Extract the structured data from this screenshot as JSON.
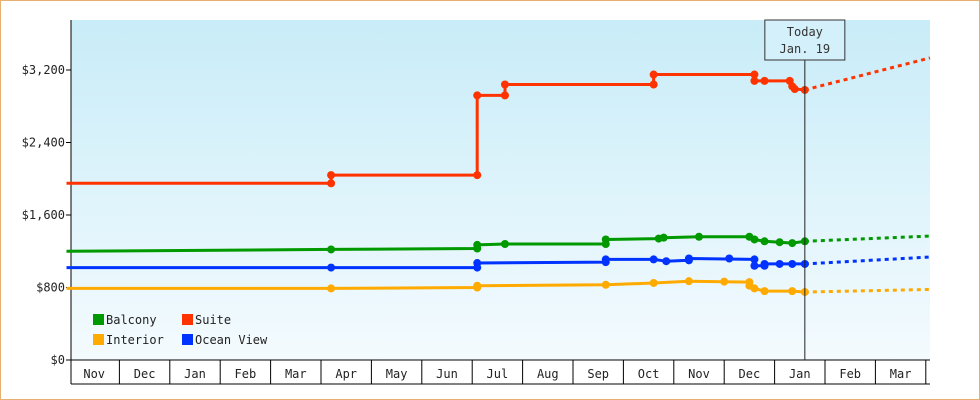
{
  "chart_data": {
    "type": "line",
    "title": "",
    "xlabel": "",
    "ylabel": "",
    "ylim": [
      0,
      3200
    ],
    "y_ticks": [
      {
        "value": 0,
        "label": "$0"
      },
      {
        "value": 800,
        "label": "$800"
      },
      {
        "value": 1600,
        "label": "$1,600"
      },
      {
        "value": 2400,
        "label": "$2,400"
      },
      {
        "value": 3200,
        "label": "$3,200"
      }
    ],
    "x_months": [
      "Nov",
      "Dec",
      "Jan",
      "Feb",
      "Mar",
      "Apr",
      "May",
      "Jun",
      "Jul",
      "Aug",
      "Sep",
      "Oct",
      "Nov",
      "Dec",
      "Jan",
      "Feb",
      "Mar"
    ],
    "today_marker": {
      "line1": "Today",
      "line2": "Jan. 19",
      "x": 14.6
    },
    "line_style": "step",
    "forecast_style": "dotted",
    "grid": false,
    "legend_position": "bottom-left",
    "background": "gradient-light-blue",
    "series": [
      {
        "name": "Suite",
        "color": "#ff3300",
        "points": [
          [
            -0.05,
            1950
          ],
          [
            5.2,
            1950
          ],
          [
            5.2,
            2040
          ],
          [
            8.1,
            2040
          ],
          [
            8.1,
            2920
          ],
          [
            8.65,
            2920
          ],
          [
            8.65,
            3040
          ],
          [
            11.6,
            3040
          ],
          [
            11.6,
            3150
          ],
          [
            13.6,
            3150
          ],
          [
            13.6,
            3080
          ],
          [
            13.8,
            3080
          ],
          [
            14.3,
            3080
          ],
          [
            14.4,
            2990
          ],
          [
            14.6,
            2980
          ]
        ],
        "markers": [
          [
            5.2,
            1950
          ],
          [
            5.2,
            2040
          ],
          [
            8.1,
            2040
          ],
          [
            8.1,
            2920
          ],
          [
            8.65,
            2920
          ],
          [
            8.65,
            3040
          ],
          [
            11.6,
            3040
          ],
          [
            11.6,
            3150
          ],
          [
            13.6,
            3150
          ],
          [
            13.6,
            3080
          ],
          [
            13.8,
            3080
          ],
          [
            14.3,
            3080
          ],
          [
            14.35,
            3020
          ],
          [
            14.4,
            2990
          ],
          [
            14.6,
            2980
          ]
        ],
        "forecast": [
          [
            14.6,
            2980
          ],
          [
            17.2,
            3350
          ]
        ]
      },
      {
        "name": "Balcony",
        "color": "#009900",
        "points": [
          [
            -0.05,
            1200
          ],
          [
            5.2,
            1220
          ],
          [
            8.1,
            1230
          ],
          [
            8.1,
            1270
          ],
          [
            8.65,
            1280
          ],
          [
            10.65,
            1280
          ],
          [
            10.65,
            1330
          ],
          [
            11.7,
            1340
          ],
          [
            11.8,
            1350
          ],
          [
            12.5,
            1360
          ],
          [
            13.5,
            1360
          ],
          [
            13.6,
            1330
          ],
          [
            13.8,
            1310
          ],
          [
            14.1,
            1300
          ],
          [
            14.35,
            1290
          ],
          [
            14.6,
            1310
          ]
        ],
        "markers": [
          [
            5.2,
            1220
          ],
          [
            8.1,
            1230
          ],
          [
            8.1,
            1270
          ],
          [
            8.65,
            1280
          ],
          [
            10.65,
            1280
          ],
          [
            10.65,
            1330
          ],
          [
            11.7,
            1340
          ],
          [
            11.8,
            1350
          ],
          [
            12.5,
            1360
          ],
          [
            13.5,
            1360
          ],
          [
            13.6,
            1330
          ],
          [
            13.8,
            1310
          ],
          [
            14.1,
            1300
          ],
          [
            14.35,
            1290
          ],
          [
            14.6,
            1310
          ]
        ],
        "forecast": [
          [
            14.6,
            1310
          ],
          [
            17.2,
            1370
          ]
        ]
      },
      {
        "name": "Ocean View",
        "color": "#0033ff",
        "points": [
          [
            -0.05,
            1020
          ],
          [
            5.2,
            1020
          ],
          [
            8.1,
            1020
          ],
          [
            8.1,
            1070
          ],
          [
            10.65,
            1080
          ],
          [
            10.65,
            1110
          ],
          [
            11.6,
            1110
          ],
          [
            11.85,
            1090
          ],
          [
            12.3,
            1100
          ],
          [
            12.3,
            1120
          ],
          [
            13.6,
            1110
          ],
          [
            13.6,
            1040
          ],
          [
            13.8,
            1040
          ],
          [
            13.8,
            1060
          ],
          [
            14.1,
            1060
          ],
          [
            14.35,
            1060
          ],
          [
            14.6,
            1060
          ]
        ],
        "markers": [
          [
            5.2,
            1020
          ],
          [
            8.1,
            1020
          ],
          [
            8.1,
            1070
          ],
          [
            10.65,
            1080
          ],
          [
            10.65,
            1110
          ],
          [
            11.6,
            1110
          ],
          [
            11.85,
            1090
          ],
          [
            12.3,
            1100
          ],
          [
            12.3,
            1120
          ],
          [
            13.1,
            1120
          ],
          [
            13.6,
            1110
          ],
          [
            13.6,
            1040
          ],
          [
            13.8,
            1040
          ],
          [
            13.8,
            1060
          ],
          [
            14.1,
            1060
          ],
          [
            14.35,
            1060
          ],
          [
            14.6,
            1060
          ]
        ],
        "forecast": [
          [
            14.6,
            1060
          ],
          [
            17.2,
            1140
          ]
        ]
      },
      {
        "name": "Interior",
        "color": "#ffaa00",
        "points": [
          [
            -0.05,
            790
          ],
          [
            5.2,
            790
          ],
          [
            8.1,
            800
          ],
          [
            8.1,
            820
          ],
          [
            10.65,
            830
          ],
          [
            11.6,
            850
          ],
          [
            12.3,
            870
          ],
          [
            13.5,
            860
          ],
          [
            13.5,
            820
          ],
          [
            13.6,
            790
          ],
          [
            13.8,
            760
          ],
          [
            14.35,
            760
          ],
          [
            14.6,
            750
          ]
        ],
        "markers": [
          [
            5.2,
            790
          ],
          [
            8.1,
            800
          ],
          [
            8.1,
            820
          ],
          [
            10.65,
            830
          ],
          [
            11.6,
            850
          ],
          [
            12.3,
            870
          ],
          [
            13.0,
            865
          ],
          [
            13.5,
            860
          ],
          [
            13.5,
            820
          ],
          [
            13.6,
            790
          ],
          [
            13.8,
            760
          ],
          [
            14.35,
            760
          ],
          [
            14.6,
            750
          ]
        ],
        "forecast": [
          [
            14.6,
            750
          ],
          [
            17.2,
            780
          ]
        ]
      }
    ],
    "legend": [
      {
        "name": "Balcony",
        "color": "#009900"
      },
      {
        "name": "Suite",
        "color": "#ff3300"
      },
      {
        "name": "Interior",
        "color": "#ffaa00"
      },
      {
        "name": "Ocean View",
        "color": "#0033ff"
      }
    ]
  }
}
